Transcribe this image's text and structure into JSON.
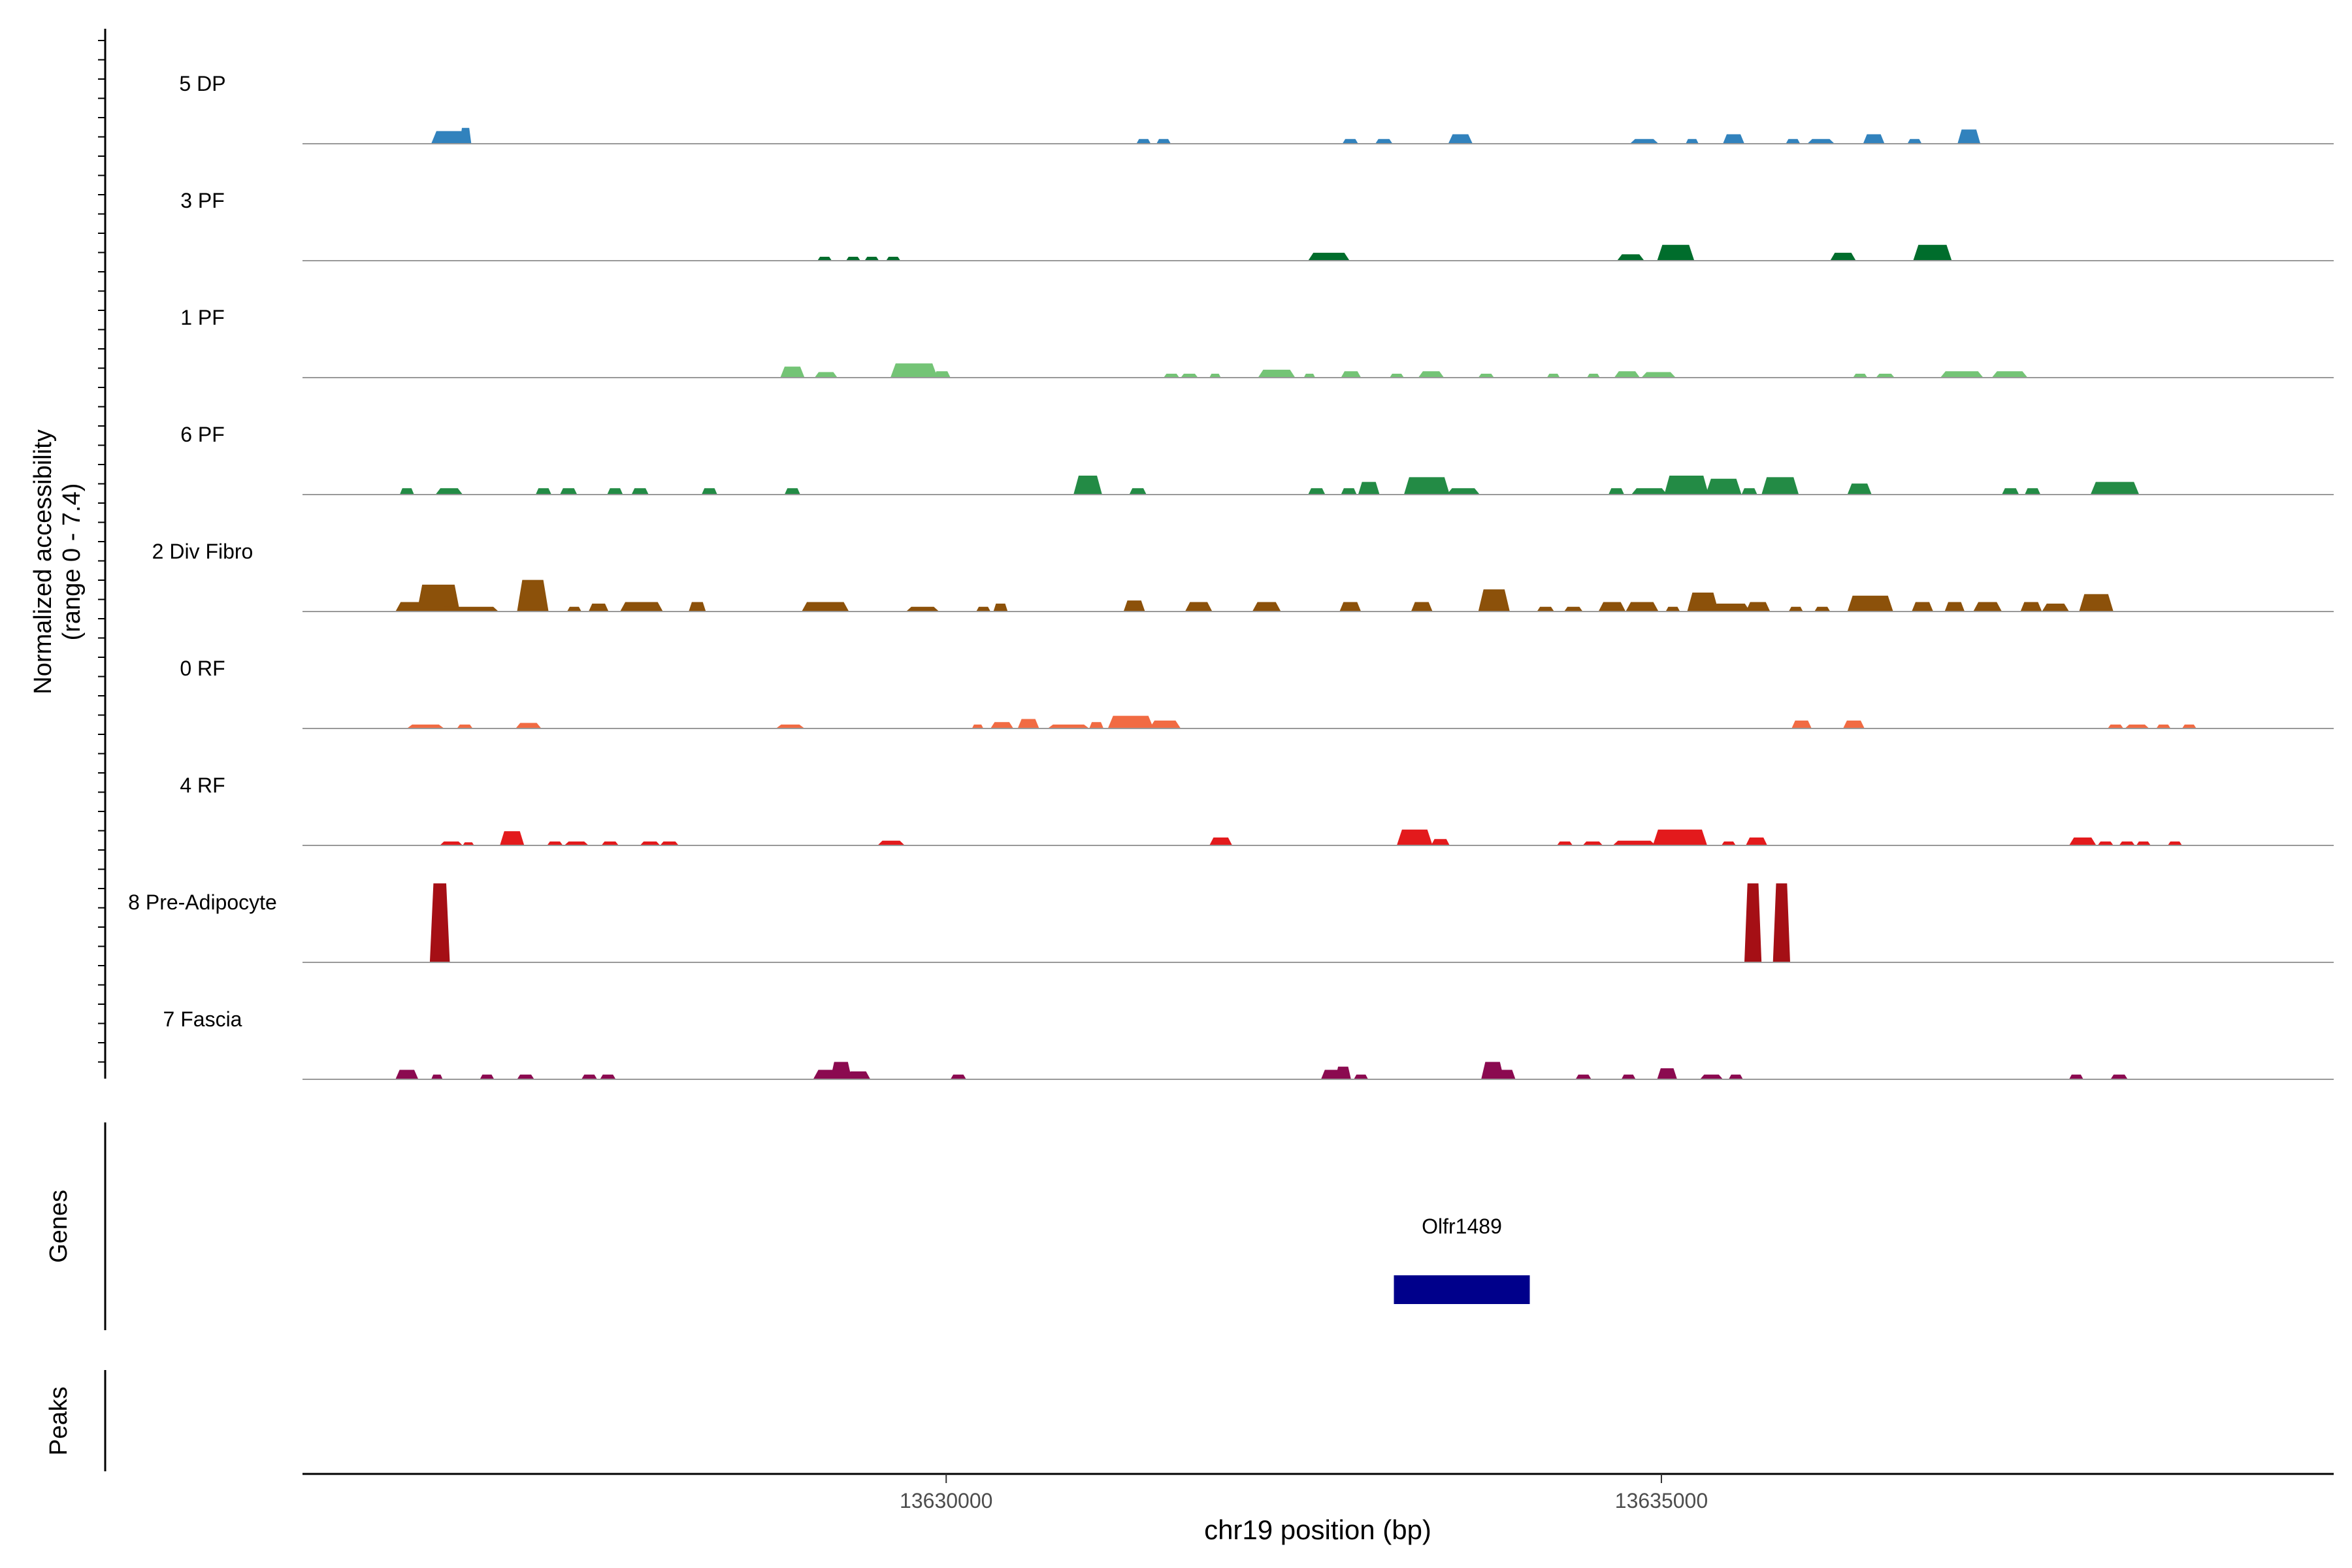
{
  "chart_data": {
    "type": "area",
    "title": "",
    "ylabel_line1": "Normalized accessibility",
    "ylabel_line2": "(range 0 - 7.4)",
    "xlabel": "chr19 position (bp)",
    "xlim": [
      13625500,
      13639700
    ],
    "ylim": [
      0,
      7.4
    ],
    "x_ticks": [
      {
        "value": 13630000,
        "label": "13630000"
      },
      {
        "value": 13635000,
        "label": "13635000"
      }
    ],
    "tracks": [
      {
        "name": "5 DP",
        "color": "#3182BD",
        "peaks": [
          {
            "start": 13626400,
            "end": 13626650,
            "h": 0.8
          },
          {
            "start": 13626600,
            "end": 13626680,
            "h": 1.0
          },
          {
            "start": 13631330,
            "end": 13631430,
            "h": 0.3
          },
          {
            "start": 13631470,
            "end": 13631570,
            "h": 0.3
          },
          {
            "start": 13632770,
            "end": 13632880,
            "h": 0.3
          },
          {
            "start": 13633000,
            "end": 13633120,
            "h": 0.3
          },
          {
            "start": 13633510,
            "end": 13633680,
            "h": 0.6
          },
          {
            "start": 13634780,
            "end": 13634980,
            "h": 0.3
          },
          {
            "start": 13635170,
            "end": 13635260,
            "h": 0.3
          },
          {
            "start": 13635430,
            "end": 13635580,
            "h": 0.6
          },
          {
            "start": 13635870,
            "end": 13635970,
            "h": 0.3
          },
          {
            "start": 13636020,
            "end": 13636210,
            "h": 0.3
          },
          {
            "start": 13636410,
            "end": 13636560,
            "h": 0.6
          },
          {
            "start": 13636720,
            "end": 13636820,
            "h": 0.3
          },
          {
            "start": 13637070,
            "end": 13637230,
            "h": 0.9
          }
        ]
      },
      {
        "name": "3 PF",
        "color": "#006D2C",
        "peaks": [
          {
            "start": 13629100,
            "end": 13629200,
            "h": 0.25
          },
          {
            "start": 13629300,
            "end": 13629400,
            "h": 0.25
          },
          {
            "start": 13629430,
            "end": 13629530,
            "h": 0.25
          },
          {
            "start": 13629580,
            "end": 13629680,
            "h": 0.25
          },
          {
            "start": 13632530,
            "end": 13632820,
            "h": 0.5
          },
          {
            "start": 13634690,
            "end": 13634880,
            "h": 0.4
          },
          {
            "start": 13634970,
            "end": 13635230,
            "h": 1.0
          },
          {
            "start": 13636180,
            "end": 13636360,
            "h": 0.5
          },
          {
            "start": 13636760,
            "end": 13637030,
            "h": 1.0
          }
        ]
      },
      {
        "name": "1 PF",
        "color": "#74C476",
        "peaks": [
          {
            "start": 13628840,
            "end": 13629010,
            "h": 0.7
          },
          {
            "start": 13629080,
            "end": 13629240,
            "h": 0.35
          },
          {
            "start": 13629610,
            "end": 13629940,
            "h": 0.9
          },
          {
            "start": 13629910,
            "end": 13630030,
            "h": 0.4
          },
          {
            "start": 13631520,
            "end": 13631630,
            "h": 0.25
          },
          {
            "start": 13631640,
            "end": 13631760,
            "h": 0.25
          },
          {
            "start": 13631840,
            "end": 13631920,
            "h": 0.25
          },
          {
            "start": 13632180,
            "end": 13632440,
            "h": 0.5
          },
          {
            "start": 13632500,
            "end": 13632580,
            "h": 0.25
          },
          {
            "start": 13632760,
            "end": 13632900,
            "h": 0.4
          },
          {
            "start": 13633100,
            "end": 13633200,
            "h": 0.25
          },
          {
            "start": 13633300,
            "end": 13633480,
            "h": 0.4
          },
          {
            "start": 13633720,
            "end": 13633830,
            "h": 0.25
          },
          {
            "start": 13634200,
            "end": 13634290,
            "h": 0.25
          },
          {
            "start": 13634480,
            "end": 13634570,
            "h": 0.25
          },
          {
            "start": 13634670,
            "end": 13634850,
            "h": 0.4
          },
          {
            "start": 13634860,
            "end": 13635100,
            "h": 0.35
          },
          {
            "start": 13636340,
            "end": 13636440,
            "h": 0.25
          },
          {
            "start": 13636500,
            "end": 13636630,
            "h": 0.25
          },
          {
            "start": 13636950,
            "end": 13637250,
            "h": 0.4
          },
          {
            "start": 13637310,
            "end": 13637560,
            "h": 0.4
          }
        ]
      },
      {
        "name": "6 PF",
        "color": "#238B45",
        "peaks": [
          {
            "start": 13626180,
            "end": 13626280,
            "h": 0.4
          },
          {
            "start": 13626430,
            "end": 13626620,
            "h": 0.4
          },
          {
            "start": 13627130,
            "end": 13627240,
            "h": 0.4
          },
          {
            "start": 13627300,
            "end": 13627420,
            "h": 0.4
          },
          {
            "start": 13627630,
            "end": 13627740,
            "h": 0.4
          },
          {
            "start": 13627800,
            "end": 13627920,
            "h": 0.4
          },
          {
            "start": 13628290,
            "end": 13628400,
            "h": 0.4
          },
          {
            "start": 13628870,
            "end": 13628980,
            "h": 0.4
          },
          {
            "start": 13630890,
            "end": 13631090,
            "h": 1.2
          },
          {
            "start": 13631280,
            "end": 13631400,
            "h": 0.4
          },
          {
            "start": 13632530,
            "end": 13632650,
            "h": 0.4
          },
          {
            "start": 13632760,
            "end": 13632870,
            "h": 0.4
          },
          {
            "start": 13632880,
            "end": 13633030,
            "h": 0.8
          },
          {
            "start": 13633200,
            "end": 13633520,
            "h": 1.1
          },
          {
            "start": 13633500,
            "end": 13633730,
            "h": 0.4
          },
          {
            "start": 13634630,
            "end": 13634740,
            "h": 0.4
          },
          {
            "start": 13634790,
            "end": 13635040,
            "h": 0.4
          },
          {
            "start": 13635020,
            "end": 13635330,
            "h": 1.2
          },
          {
            "start": 13635310,
            "end": 13635560,
            "h": 1.0
          },
          {
            "start": 13635560,
            "end": 13635670,
            "h": 0.4
          },
          {
            "start": 13635700,
            "end": 13635960,
            "h": 1.1
          },
          {
            "start": 13636300,
            "end": 13636470,
            "h": 0.7
          },
          {
            "start": 13637380,
            "end": 13637500,
            "h": 0.4
          },
          {
            "start": 13637540,
            "end": 13637650,
            "h": 0.4
          },
          {
            "start": 13638000,
            "end": 13638340,
            "h": 0.8
          }
        ]
      },
      {
        "name": "2 Div Fibro",
        "color": "#8C510A",
        "peaks": [
          {
            "start": 13626150,
            "end": 13626370,
            "h": 0.6
          },
          {
            "start": 13626300,
            "end": 13626600,
            "h": 1.7
          },
          {
            "start": 13626450,
            "end": 13626870,
            "h": 0.3
          },
          {
            "start": 13627000,
            "end": 13627220,
            "h": 2.0
          },
          {
            "start": 13627350,
            "end": 13627450,
            "h": 0.3
          },
          {
            "start": 13627500,
            "end": 13627640,
            "h": 0.5
          },
          {
            "start": 13627720,
            "end": 13628020,
            "h": 0.6
          },
          {
            "start": 13628200,
            "end": 13628320,
            "h": 0.6
          },
          {
            "start": 13628990,
            "end": 13629320,
            "h": 0.6
          },
          {
            "start": 13629720,
            "end": 13629950,
            "h": 0.3
          },
          {
            "start": 13630210,
            "end": 13630310,
            "h": 0.3
          },
          {
            "start": 13630330,
            "end": 13630430,
            "h": 0.5
          },
          {
            "start": 13631240,
            "end": 13631390,
            "h": 0.7
          },
          {
            "start": 13631670,
            "end": 13631860,
            "h": 0.6
          },
          {
            "start": 13632140,
            "end": 13632340,
            "h": 0.6
          },
          {
            "start": 13632750,
            "end": 13632900,
            "h": 0.6
          },
          {
            "start": 13633250,
            "end": 13633400,
            "h": 0.6
          },
          {
            "start": 13633720,
            "end": 13633940,
            "h": 1.4
          },
          {
            "start": 13634130,
            "end": 13634250,
            "h": 0.3
          },
          {
            "start": 13634320,
            "end": 13634450,
            "h": 0.3
          },
          {
            "start": 13634560,
            "end": 13634750,
            "h": 0.6
          },
          {
            "start": 13634750,
            "end": 13634980,
            "h": 0.6
          },
          {
            "start": 13635030,
            "end": 13635130,
            "h": 0.3
          },
          {
            "start": 13635180,
            "end": 13635400,
            "h": 1.2
          },
          {
            "start": 13635350,
            "end": 13635620,
            "h": 0.5
          },
          {
            "start": 13635590,
            "end": 13635760,
            "h": 0.6
          },
          {
            "start": 13635890,
            "end": 13635990,
            "h": 0.3
          },
          {
            "start": 13636070,
            "end": 13636180,
            "h": 0.3
          },
          {
            "start": 13636300,
            "end": 13636620,
            "h": 1.0
          },
          {
            "start": 13636750,
            "end": 13636900,
            "h": 0.6
          },
          {
            "start": 13636980,
            "end": 13637120,
            "h": 0.6
          },
          {
            "start": 13637180,
            "end": 13637380,
            "h": 0.6
          },
          {
            "start": 13637510,
            "end": 13637660,
            "h": 0.6
          },
          {
            "start": 13637660,
            "end": 13637850,
            "h": 0.5
          },
          {
            "start": 13637920,
            "end": 13638160,
            "h": 1.1
          }
        ]
      },
      {
        "name": "0 RF",
        "color": "#F16B43",
        "peaks": [
          {
            "start": 13626230,
            "end": 13626490,
            "h": 0.25
          },
          {
            "start": 13626580,
            "end": 13626690,
            "h": 0.25
          },
          {
            "start": 13626990,
            "end": 13627170,
            "h": 0.35
          },
          {
            "start": 13628810,
            "end": 13629010,
            "h": 0.25
          },
          {
            "start": 13630180,
            "end": 13630260,
            "h": 0.25
          },
          {
            "start": 13630310,
            "end": 13630470,
            "h": 0.4
          },
          {
            "start": 13630500,
            "end": 13630650,
            "h": 0.6
          },
          {
            "start": 13630710,
            "end": 13631000,
            "h": 0.25
          },
          {
            "start": 13631000,
            "end": 13631100,
            "h": 0.4
          },
          {
            "start": 13631130,
            "end": 13631450,
            "h": 0.8
          },
          {
            "start": 13631420,
            "end": 13631640,
            "h": 0.5
          },
          {
            "start": 13635910,
            "end": 13636050,
            "h": 0.5
          },
          {
            "start": 13636270,
            "end": 13636420,
            "h": 0.5
          },
          {
            "start": 13638120,
            "end": 13638230,
            "h": 0.25
          },
          {
            "start": 13638240,
            "end": 13638410,
            "h": 0.25
          },
          {
            "start": 13638460,
            "end": 13638560,
            "h": 0.25
          },
          {
            "start": 13638640,
            "end": 13638740,
            "h": 0.25
          }
        ]
      },
      {
        "name": "4 RF",
        "color": "#E31A1C",
        "peaks": [
          {
            "start": 13626460,
            "end": 13626620,
            "h": 0.25
          },
          {
            "start": 13626620,
            "end": 13626700,
            "h": 0.2
          },
          {
            "start": 13626880,
            "end": 13627050,
            "h": 0.9
          },
          {
            "start": 13627210,
            "end": 13627320,
            "h": 0.25
          },
          {
            "start": 13627330,
            "end": 13627500,
            "h": 0.25
          },
          {
            "start": 13627590,
            "end": 13627710,
            "h": 0.25
          },
          {
            "start": 13627860,
            "end": 13628000,
            "h": 0.25
          },
          {
            "start": 13628000,
            "end": 13628130,
            "h": 0.25
          },
          {
            "start": 13629520,
            "end": 13629710,
            "h": 0.3
          },
          {
            "start": 13631840,
            "end": 13632000,
            "h": 0.5
          },
          {
            "start": 13633150,
            "end": 13633400,
            "h": 1.0
          },
          {
            "start": 13633390,
            "end": 13633520,
            "h": 0.4
          },
          {
            "start": 13634270,
            "end": 13634380,
            "h": 0.25
          },
          {
            "start": 13634450,
            "end": 13634590,
            "h": 0.25
          },
          {
            "start": 13634660,
            "end": 13634960,
            "h": 0.3
          },
          {
            "start": 13634940,
            "end": 13635320,
            "h": 1.0
          },
          {
            "start": 13635420,
            "end": 13635520,
            "h": 0.25
          },
          {
            "start": 13635590,
            "end": 13635740,
            "h": 0.5
          },
          {
            "start": 13637850,
            "end": 13638040,
            "h": 0.5
          },
          {
            "start": 13638050,
            "end": 13638160,
            "h": 0.25
          },
          {
            "start": 13638200,
            "end": 13638310,
            "h": 0.25
          },
          {
            "start": 13638320,
            "end": 13638420,
            "h": 0.25
          },
          {
            "start": 13638540,
            "end": 13638640,
            "h": 0.25
          }
        ]
      },
      {
        "name": "8 Pre-Adipocyte",
        "color": "#A50F15",
        "peaks": [
          {
            "start": 13626390,
            "end": 13626530,
            "h": 5.0
          },
          {
            "start": 13635580,
            "end": 13635700,
            "h": 5.0
          },
          {
            "start": 13635780,
            "end": 13635900,
            "h": 5.0
          }
        ]
      },
      {
        "name": "7 Fascia",
        "color": "#8B0A50",
        "peaks": [
          {
            "start": 13626150,
            "end": 13626310,
            "h": 0.6
          },
          {
            "start": 13626400,
            "end": 13626480,
            "h": 0.3
          },
          {
            "start": 13626740,
            "end": 13626840,
            "h": 0.3
          },
          {
            "start": 13627000,
            "end": 13627120,
            "h": 0.3
          },
          {
            "start": 13627450,
            "end": 13627560,
            "h": 0.3
          },
          {
            "start": 13627580,
            "end": 13627690,
            "h": 0.3
          },
          {
            "start": 13629070,
            "end": 13629300,
            "h": 0.6
          },
          {
            "start": 13629190,
            "end": 13629340,
            "h": 1.1
          },
          {
            "start": 13629300,
            "end": 13629470,
            "h": 0.5
          },
          {
            "start": 13630030,
            "end": 13630140,
            "h": 0.3
          },
          {
            "start": 13632620,
            "end": 13632770,
            "h": 0.6
          },
          {
            "start": 13632720,
            "end": 13632830,
            "h": 0.8
          },
          {
            "start": 13632850,
            "end": 13632950,
            "h": 0.3
          },
          {
            "start": 13633740,
            "end": 13633900,
            "h": 1.1
          },
          {
            "start": 13633850,
            "end": 13633980,
            "h": 0.6
          },
          {
            "start": 13634400,
            "end": 13634510,
            "h": 0.3
          },
          {
            "start": 13634720,
            "end": 13634820,
            "h": 0.3
          },
          {
            "start": 13634970,
            "end": 13635110,
            "h": 0.7
          },
          {
            "start": 13635270,
            "end": 13635430,
            "h": 0.3
          },
          {
            "start": 13635470,
            "end": 13635570,
            "h": 0.3
          },
          {
            "start": 13637850,
            "end": 13637950,
            "h": 0.3
          },
          {
            "start": 13638140,
            "end": 13638260,
            "h": 0.3
          }
        ]
      }
    ],
    "genes_label": "Genes",
    "genes": [
      {
        "name": "Olfr1489",
        "start": 13633130,
        "end": 13634080,
        "color": "#00008B"
      }
    ],
    "peaks_label": "Peaks"
  }
}
